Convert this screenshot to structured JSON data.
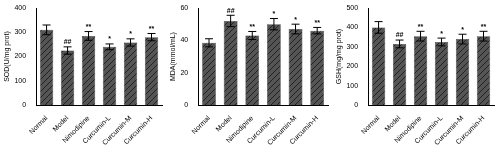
{
  "chart_data": [
    {
      "type": "bar",
      "y_label": "SOD(U/mg prot)",
      "categories": [
        "Normal",
        "Model",
        "Nimodipine",
        "Curcumin-L",
        "Curcumin-M",
        "Curcumin-H"
      ],
      "values": [
        310,
        225,
        285,
        240,
        258,
        280
      ],
      "errors": [
        20,
        15,
        18,
        12,
        15,
        15
      ],
      "significance": [
        null,
        "##",
        "**",
        "*",
        "*",
        "**"
      ],
      "color": "#555555",
      "ylim": [
        0,
        400
      ],
      "yticks": [
        0,
        100,
        200,
        300,
        400
      ],
      "grid": false
    },
    {
      "type": "bar",
      "y_label": "MDA(mmol/mL)",
      "categories": [
        "Normal",
        "Model",
        "Nimodipine",
        "Curcumin-L",
        "Curcumin-M",
        "Curcumin-H"
      ],
      "values": [
        38.5,
        52,
        43,
        50,
        47,
        46
      ],
      "errors": [
        2.5,
        3.5,
        2.5,
        3.5,
        3,
        2
      ],
      "significance": [
        null,
        "##",
        "**",
        "*",
        "*",
        "**"
      ],
      "color": "#555555",
      "ylim": [
        0,
        60
      ],
      "yticks": [
        0,
        20,
        40,
        60
      ],
      "grid": false
    },
    {
      "type": "bar",
      "y_label": "GSH(mg/mg prot)",
      "categories": [
        "Normal",
        "Model",
        "Nimodipine",
        "Curcumin-L",
        "Curcumin-M",
        "Curcumin-H"
      ],
      "values": [
        400,
        315,
        355,
        325,
        340,
        355
      ],
      "errors": [
        30,
        20,
        25,
        20,
        25,
        25
      ],
      "significance": [
        null,
        "##",
        "**",
        "*",
        "*",
        "**"
      ],
      "color": "#555555",
      "ylim": [
        0,
        500
      ],
      "yticks": [
        0,
        100,
        200,
        300,
        400,
        500
      ],
      "grid": false
    }
  ]
}
